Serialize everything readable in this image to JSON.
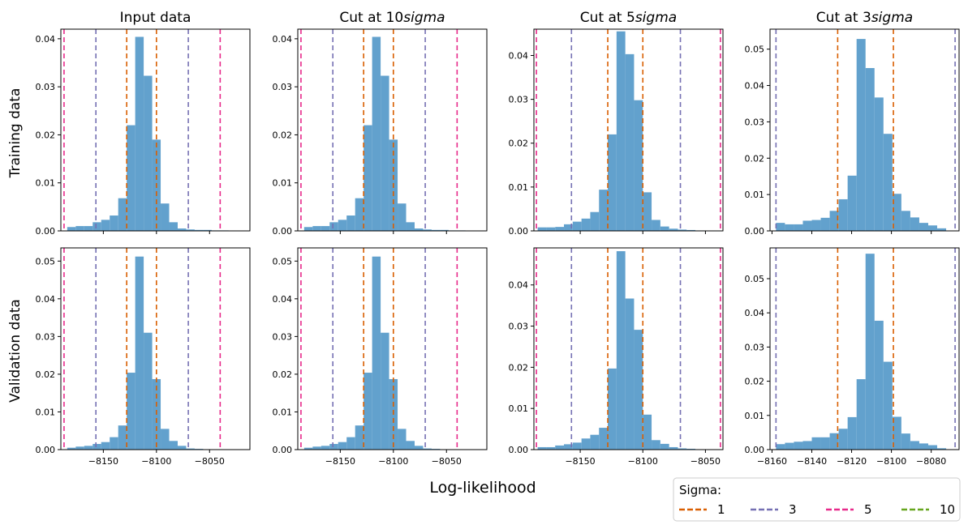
{
  "figure": {
    "xlabel": "Log-likelihood",
    "row_labels": [
      "Training data",
      "Validation data"
    ]
  },
  "legend": {
    "title": "Sigma:",
    "placement": "bottom-right",
    "entries": [
      {
        "label": "1",
        "color": "#d95f02"
      },
      {
        "label": "3",
        "color": "#7570b3"
      },
      {
        "label": "5",
        "color": "#e7298a"
      },
      {
        "label": "10",
        "color": "#66a61e"
      }
    ]
  },
  "chart_data": [
    {
      "type": "histogram",
      "title": "Input data",
      "row": 0,
      "col": 0,
      "bar_color": "#62a1cd",
      "xlim": [
        -8190,
        -8012
      ],
      "ylim": [
        0,
        0.042
      ],
      "xticks": [
        -8150,
        -8100,
        -8050
      ],
      "show_xticklabels": false,
      "yticks": [
        0,
        0.01,
        0.02,
        0.03,
        0.04
      ],
      "ytick_labels": [
        "0.00",
        "0.01",
        "0.02",
        "0.03",
        "0.04"
      ],
      "bin_edges": [
        -8184,
        -8176,
        -8168,
        -8160,
        -8152,
        -8144,
        -8136,
        -8128,
        -8120,
        -8112,
        -8104,
        -8096,
        -8088,
        -8080,
        -8072,
        -8064,
        -8056,
        -8048,
        -8040,
        -8032,
        -8024
      ],
      "heights": [
        0.0008,
        0.001,
        0.001,
        0.0018,
        0.0023,
        0.0032,
        0.0068,
        0.022,
        0.0404,
        0.0323,
        0.019,
        0.0057,
        0.0018,
        0.0005,
        0.0003,
        0.0002,
        0.0002,
        0.0001,
        0.0001,
        0
      ],
      "lines": [
        {
          "sigma": "1",
          "x": [
            -8128,
            -8100
          ]
        },
        {
          "sigma": "3",
          "x": [
            -8157,
            -8070
          ]
        },
        {
          "sigma": "5",
          "x": [
            -8187,
            -8040
          ]
        }
      ]
    },
    {
      "type": "histogram",
      "title": "Cut at 10$sigma$",
      "row": 0,
      "col": 1,
      "bar_color": "#62a1cd",
      "xlim": [
        -8190,
        -8012
      ],
      "ylim": [
        0,
        0.042
      ],
      "xticks": [
        -8150,
        -8100,
        -8050
      ],
      "show_xticklabels": false,
      "yticks": [
        0,
        0.01,
        0.02,
        0.03,
        0.04
      ],
      "ytick_labels": [
        "0.00",
        "0.01",
        "0.02",
        "0.03",
        "0.04"
      ],
      "bin_edges": [
        -8184,
        -8176,
        -8168,
        -8160,
        -8152,
        -8144,
        -8136,
        -8128,
        -8120,
        -8112,
        -8104,
        -8096,
        -8088,
        -8080,
        -8072,
        -8064,
        -8056,
        -8048,
        -8040,
        -8032,
        -8024
      ],
      "heights": [
        0.0008,
        0.001,
        0.001,
        0.0018,
        0.0023,
        0.0032,
        0.0068,
        0.022,
        0.0404,
        0.0323,
        0.019,
        0.0057,
        0.0018,
        0.0005,
        0.0003,
        0.0002,
        0.0002,
        0.0001,
        0.0001,
        0
      ],
      "lines": [
        {
          "sigma": "1",
          "x": [
            -8128,
            -8100
          ]
        },
        {
          "sigma": "3",
          "x": [
            -8157,
            -8070
          ]
        },
        {
          "sigma": "5",
          "x": [
            -8187,
            -8040
          ]
        }
      ]
    },
    {
      "type": "histogram",
      "title": "Cut at 5$sigma$",
      "row": 0,
      "col": 2,
      "bar_color": "#62a1cd",
      "xlim": [
        -8187,
        -8036
      ],
      "ylim": [
        0,
        0.046
      ],
      "xticks": [
        -8150,
        -8100,
        -8050
      ],
      "show_xticklabels": false,
      "yticks": [
        0,
        0.01,
        0.02,
        0.03,
        0.04
      ],
      "ytick_labels": [
        "0.00",
        "0.01",
        "0.02",
        "0.03",
        "0.04"
      ],
      "bin_edges": [
        -8184,
        -8177,
        -8170,
        -8163,
        -8156,
        -8149,
        -8142,
        -8135,
        -8128,
        -8121,
        -8114,
        -8107,
        -8100,
        -8093,
        -8086,
        -8079,
        -8072,
        -8065,
        -8058,
        -8051,
        -8044
      ],
      "heights": [
        0.0008,
        0.0008,
        0.0009,
        0.0015,
        0.0021,
        0.0028,
        0.0043,
        0.0094,
        0.022,
        0.0455,
        0.0403,
        0.0298,
        0.0088,
        0.0025,
        0.001,
        0.0005,
        0.0003,
        0.0002,
        0.0001,
        0
      ],
      "lines": [
        {
          "sigma": "1",
          "x": [
            -8128,
            -8100
          ]
        },
        {
          "sigma": "3",
          "x": [
            -8157,
            -8070
          ]
        },
        {
          "sigma": "5",
          "x": [
            -8185,
            -8038
          ]
        }
      ]
    },
    {
      "type": "histogram",
      "title": "Cut at 3$sigma$",
      "row": 0,
      "col": 3,
      "bar_color": "#62a1cd",
      "xlim": [
        -8161,
        -8066
      ],
      "ylim": [
        0,
        0.0555
      ],
      "xticks": [
        -8160,
        -8140,
        -8120,
        -8100,
        -8080
      ],
      "show_xticklabels": false,
      "yticks": [
        0,
        0.01,
        0.02,
        0.03,
        0.04,
        0.05
      ],
      "ytick_labels": [
        "0.00",
        "0.01",
        "0.02",
        "0.03",
        "0.04",
        "0.05"
      ],
      "bin_edges": [
        -8158,
        -8153.5,
        -8149,
        -8144.5,
        -8140,
        -8135.5,
        -8131,
        -8126.5,
        -8122,
        -8117.5,
        -8113,
        -8108.5,
        -8104,
        -8099.5,
        -8095,
        -8090.5,
        -8086,
        -8081.5,
        -8077,
        -8072.5,
        -8068
      ],
      "heights": [
        0.0022,
        0.0018,
        0.0018,
        0.0028,
        0.003,
        0.0036,
        0.0055,
        0.0087,
        0.0152,
        0.0528,
        0.0448,
        0.0367,
        0.0267,
        0.0102,
        0.0055,
        0.0037,
        0.0022,
        0.0015,
        0.0007,
        0
      ],
      "lines": [
        {
          "sigma": "1",
          "x": [
            -8127,
            -8099
          ]
        },
        {
          "sigma": "3",
          "x": [
            -8158,
            -8068
          ]
        }
      ]
    },
    {
      "type": "histogram",
      "title": "",
      "row": 1,
      "col": 0,
      "bar_color": "#62a1cd",
      "xlim": [
        -8190,
        -8012
      ],
      "ylim": [
        0,
        0.0535
      ],
      "xticks": [
        -8150,
        -8100,
        -8050
      ],
      "xtick_labels": [
        "−8150",
        "−8100",
        "−8050"
      ],
      "show_xticklabels": true,
      "yticks": [
        0,
        0.01,
        0.02,
        0.03,
        0.04,
        0.05
      ],
      "ytick_labels": [
        "0.00",
        "0.01",
        "0.02",
        "0.03",
        "0.04",
        "0.05"
      ],
      "bin_edges": [
        -8184,
        -8176,
        -8168,
        -8160,
        -8152,
        -8144,
        -8136,
        -8128,
        -8120,
        -8112,
        -8104,
        -8096,
        -8088,
        -8080,
        -8072,
        -8064,
        -8056,
        -8048,
        -8040,
        -8032,
        -8024
      ],
      "heights": [
        0.0005,
        0.0008,
        0.001,
        0.0015,
        0.002,
        0.0033,
        0.0064,
        0.0204,
        0.0512,
        0.031,
        0.0187,
        0.0055,
        0.0023,
        0.001,
        0.0003,
        0.0002,
        0.0001,
        0.0001,
        0,
        0
      ],
      "lines": [
        {
          "sigma": "1",
          "x": [
            -8128,
            -8100
          ]
        },
        {
          "sigma": "3",
          "x": [
            -8157,
            -8070
          ]
        },
        {
          "sigma": "5",
          "x": [
            -8187,
            -8040
          ]
        }
      ]
    },
    {
      "type": "histogram",
      "title": "",
      "row": 1,
      "col": 1,
      "bar_color": "#62a1cd",
      "xlim": [
        -8190,
        -8012
      ],
      "ylim": [
        0,
        0.0535
      ],
      "xticks": [
        -8150,
        -8100,
        -8050
      ],
      "xtick_labels": [
        "−8150",
        "−8100",
        "−8050"
      ],
      "show_xticklabels": true,
      "yticks": [
        0,
        0.01,
        0.02,
        0.03,
        0.04,
        0.05
      ],
      "ytick_labels": [
        "0.00",
        "0.01",
        "0.02",
        "0.03",
        "0.04",
        "0.05"
      ],
      "bin_edges": [
        -8184,
        -8176,
        -8168,
        -8160,
        -8152,
        -8144,
        -8136,
        -8128,
        -8120,
        -8112,
        -8104,
        -8096,
        -8088,
        -8080,
        -8072,
        -8064,
        -8056,
        -8048,
        -8040,
        -8032,
        -8024
      ],
      "heights": [
        0.0005,
        0.0008,
        0.001,
        0.0015,
        0.002,
        0.0033,
        0.0064,
        0.0204,
        0.0512,
        0.031,
        0.0187,
        0.0055,
        0.0023,
        0.001,
        0.0003,
        0.0002,
        0.0001,
        0.0001,
        0,
        0
      ],
      "lines": [
        {
          "sigma": "1",
          "x": [
            -8128,
            -8100
          ]
        },
        {
          "sigma": "3",
          "x": [
            -8157,
            -8070
          ]
        },
        {
          "sigma": "5",
          "x": [
            -8187,
            -8040
          ]
        }
      ]
    },
    {
      "type": "histogram",
      "title": "",
      "row": 1,
      "col": 2,
      "bar_color": "#62a1cd",
      "xlim": [
        -8187,
        -8036
      ],
      "ylim": [
        0,
        0.049
      ],
      "xticks": [
        -8150,
        -8100,
        -8050
      ],
      "xtick_labels": [
        "−8150",
        "−8100",
        "−8050"
      ],
      "show_xticklabels": true,
      "yticks": [
        0,
        0.01,
        0.02,
        0.03,
        0.04
      ],
      "ytick_labels": [
        "0.00",
        "0.01",
        "0.02",
        "0.03",
        "0.04"
      ],
      "bin_edges": [
        -8184,
        -8177,
        -8170,
        -8163,
        -8156,
        -8149,
        -8142,
        -8135,
        -8128,
        -8121,
        -8114,
        -8107,
        -8100,
        -8093,
        -8086,
        -8079,
        -8072,
        -8065,
        -8058,
        -8051,
        -8044
      ],
      "heights": [
        0.0006,
        0.0006,
        0.001,
        0.0013,
        0.0017,
        0.0027,
        0.0036,
        0.0053,
        0.0197,
        0.0482,
        0.0367,
        0.0291,
        0.0085,
        0.0023,
        0.0014,
        0.0006,
        0.0003,
        0.0002,
        0.0001,
        0
      ],
      "lines": [
        {
          "sigma": "1",
          "x": [
            -8128,
            -8100
          ]
        },
        {
          "sigma": "3",
          "x": [
            -8157,
            -8070
          ]
        },
        {
          "sigma": "5",
          "x": [
            -8185,
            -8038
          ]
        }
      ]
    },
    {
      "type": "histogram",
      "title": "",
      "row": 1,
      "col": 3,
      "bar_color": "#62a1cd",
      "xlim": [
        -8161,
        -8066
      ],
      "ylim": [
        0,
        0.059
      ],
      "xticks": [
        -8160,
        -8140,
        -8120,
        -8100,
        -8080
      ],
      "xtick_labels": [
        "−8160",
        "−8140",
        "−8120",
        "−8100",
        "−8080"
      ],
      "show_xticklabels": true,
      "yticks": [
        0,
        0.01,
        0.02,
        0.03,
        0.04,
        0.05
      ],
      "ytick_labels": [
        "0.00",
        "0.01",
        "0.02",
        "0.03",
        "0.04",
        "0.05"
      ],
      "bin_edges": [
        -8158,
        -8153.5,
        -8149,
        -8144.5,
        -8140,
        -8135.5,
        -8131,
        -8126.5,
        -8122,
        -8117.5,
        -8113,
        -8108.5,
        -8104,
        -8099.5,
        -8095,
        -8090.5,
        -8086,
        -8081.5,
        -8077,
        -8072.5,
        -8068
      ],
      "heights": [
        0.0016,
        0.002,
        0.0023,
        0.0025,
        0.0036,
        0.0036,
        0.0048,
        0.0061,
        0.0095,
        0.0206,
        0.0573,
        0.0377,
        0.0257,
        0.0096,
        0.0047,
        0.0025,
        0.0018,
        0.0013,
        0.0004,
        0
      ],
      "lines": [
        {
          "sigma": "1",
          "x": [
            -8127,
            -8099
          ]
        },
        {
          "sigma": "3",
          "x": [
            -8158,
            -8068
          ]
        }
      ]
    }
  ]
}
